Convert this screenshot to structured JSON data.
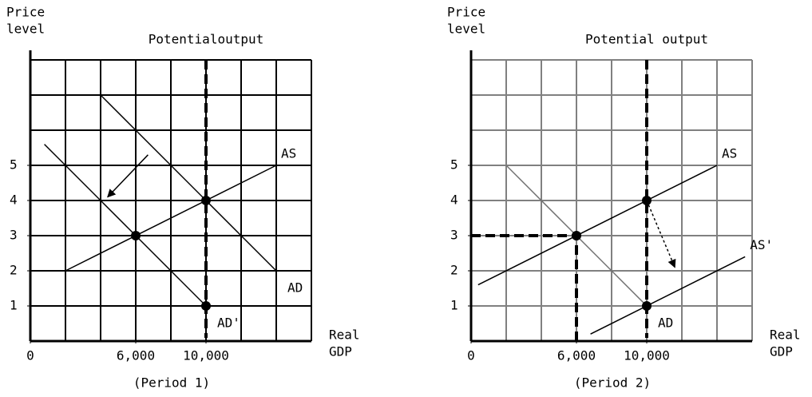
{
  "chart_data": [
    {
      "type": "line",
      "title": "Potentialoutput",
      "subtitle": "(Period 1)",
      "y_label": [
        "Price",
        "level"
      ],
      "x_label": [
        "Real",
        "GDP"
      ],
      "xlim": [
        0,
        16000
      ],
      "ylim": [
        0,
        8
      ],
      "xticks": [
        0,
        {
          "value": 6000,
          "label": "6,000"
        },
        {
          "value": 10000,
          "label": "10,000"
        }
      ],
      "yticks": [
        1,
        2,
        3,
        4,
        5
      ],
      "grid": true,
      "grid_color": "#000000",
      "potential_output": 10000,
      "series": [
        {
          "name": "AS",
          "color": "#000000",
          "x": [
            2000,
            14000
          ],
          "values": [
            2,
            5
          ]
        },
        {
          "name": "AD",
          "color": "#000000",
          "x": [
            4000,
            14000
          ],
          "values": [
            7,
            2
          ]
        },
        {
          "name": "AD'",
          "color": "#000000",
          "x": [
            800,
            10000
          ],
          "values": [
            5.6,
            1
          ]
        }
      ],
      "points": {
        "x": [
          6000,
          10000,
          10000
        ],
        "values": [
          3,
          4,
          1
        ]
      },
      "arrows": [
        {
          "x": [
            6700,
            4400
          ],
          "values": [
            5.3,
            4.1
          ],
          "dotted": false
        }
      ]
    },
    {
      "type": "line",
      "title": "Potential output",
      "subtitle": "(Period 2)",
      "y_label": [
        "Price",
        "level"
      ],
      "x_label": [
        "Real",
        "GDP"
      ],
      "xlim": [
        0,
        16000
      ],
      "ylim": [
        0,
        8
      ],
      "xticks": [
        0,
        {
          "value": 6000,
          "label": "6,000"
        },
        {
          "value": 10000,
          "label": "10,000"
        }
      ],
      "yticks": [
        1,
        2,
        3,
        4,
        5
      ],
      "grid": true,
      "grid_color": "#808080",
      "potential_output": 10000,
      "series": [
        {
          "name": "AS",
          "color": "#000000",
          "x": [
            400,
            14000
          ],
          "values": [
            1.6,
            5
          ]
        },
        {
          "name": "AS'",
          "color": "#000000",
          "x": [
            6800,
            15600
          ],
          "values": [
            0.2,
            2.4
          ]
        },
        {
          "name": "AD",
          "color": "#707070",
          "x": [
            2000,
            10000
          ],
          "values": [
            5,
            1
          ]
        },
        {
          "color": "#000000",
          "dashed": true,
          "x": [
            0,
            6000
          ],
          "values": [
            3,
            3
          ]
        },
        {
          "color": "#000000",
          "dashed": true,
          "x": [
            6000,
            6000
          ],
          "values": [
            0,
            3
          ]
        }
      ],
      "points": {
        "x": [
          10000,
          6000,
          10000
        ],
        "values": [
          4,
          3,
          1
        ]
      },
      "arrows": [
        {
          "x": [
            10000,
            11600
          ],
          "values": [
            4,
            2.1
          ],
          "dotted": true
        }
      ]
    }
  ]
}
